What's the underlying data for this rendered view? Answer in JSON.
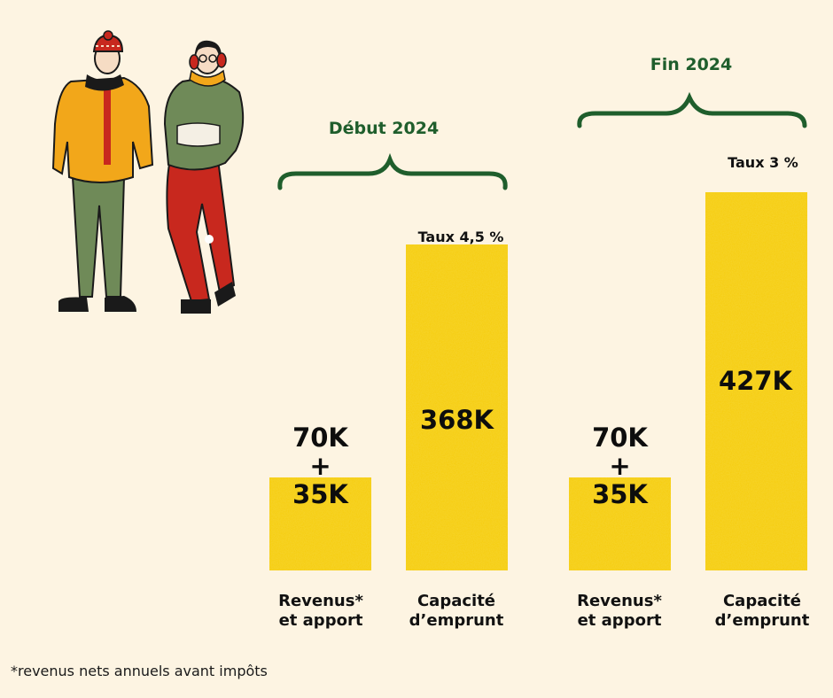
{
  "chart_data": {
    "type": "bar",
    "groups": [
      {
        "title": "Début 2024",
        "rate": "Taux 4,5 %",
        "bars": [
          {
            "label_line1": "Revenus*",
            "label_line2": "et apport",
            "value_text": "70K\n+\n35K",
            "value": 105
          },
          {
            "label_line1": "Capacité",
            "label_line2": "d’emprunt",
            "value_text": "368K",
            "value": 368
          }
        ]
      },
      {
        "title": "Fin 2024",
        "rate": "Taux 3 %",
        "bars": [
          {
            "label_line1": "Revenus*",
            "label_line2": "et apport",
            "value_text": "70K\n+\n35K",
            "value": 105
          },
          {
            "label_line1": "Capacité",
            "label_line2": "d’emprunt",
            "value_text": "427K",
            "value": 427
          }
        ]
      }
    ],
    "ylim": [
      0,
      450
    ],
    "bar_color": "#f5cc10",
    "accent_color": "#1f5e2c"
  },
  "footnote": "*revenus nets annuels avant impôts"
}
